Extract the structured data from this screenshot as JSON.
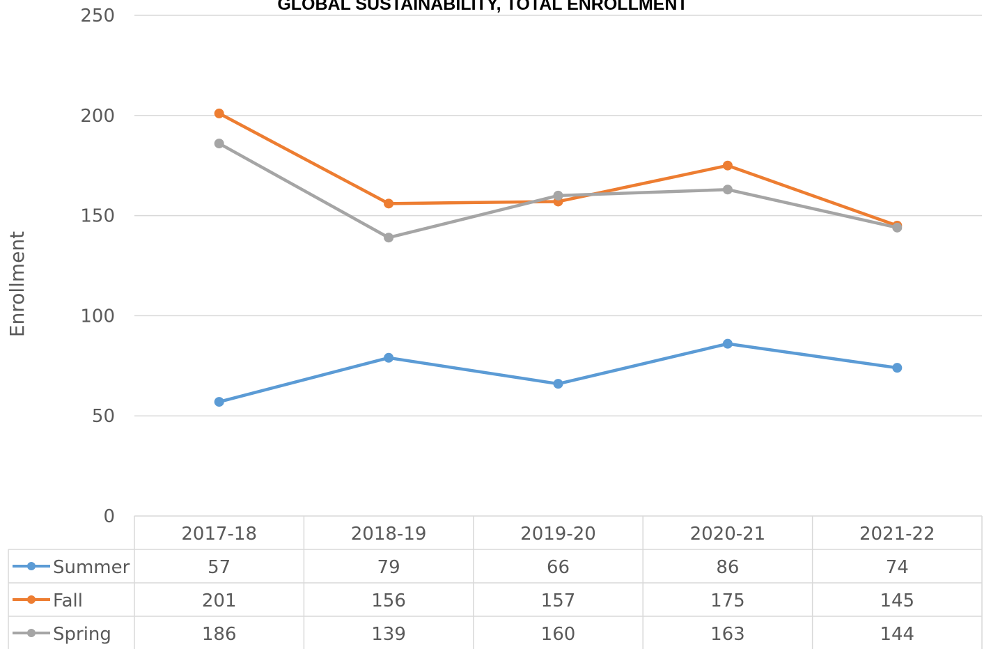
{
  "chart_data": {
    "type": "line",
    "title": "GLOBAL SUSTAINABILITY, TOTAL ENROLLMENT",
    "xlabel": "",
    "ylabel": "Enrollment",
    "ylim": [
      0,
      250
    ],
    "yticks": [
      0,
      50,
      100,
      150,
      200,
      250
    ],
    "categories": [
      "2017-18",
      "2018-19",
      "2019-20",
      "2020-21",
      "2021-22"
    ],
    "grid": true,
    "legend": "data-table",
    "series": [
      {
        "name": "Summer",
        "color": "#5B9BD5",
        "values": [
          57,
          79,
          66,
          86,
          74
        ]
      },
      {
        "name": "Fall",
        "color": "#ED7D31",
        "values": [
          201,
          156,
          157,
          175,
          145
        ]
      },
      {
        "name": "Spring",
        "color": "#A5A5A5",
        "values": [
          186,
          139,
          160,
          163,
          144
        ]
      }
    ]
  }
}
